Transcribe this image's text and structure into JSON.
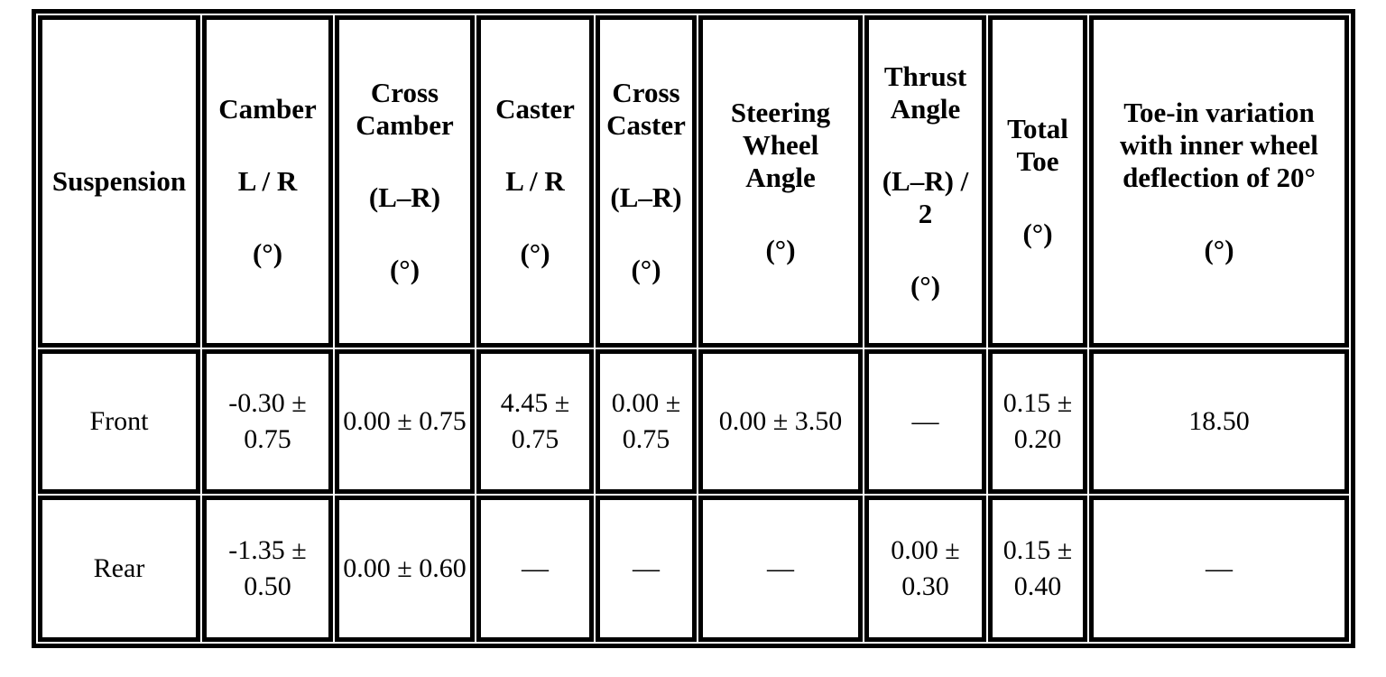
{
  "page": {
    "background": "#ffffff",
    "table_border_color": "#000000",
    "text_color": "#000000"
  },
  "table": {
    "header": {
      "cells": [
        {
          "name": "suspension",
          "groups": [
            "Suspension"
          ]
        },
        {
          "name": "camber",
          "groups": [
            "Camber",
            "L / R",
            "(°)"
          ]
        },
        {
          "name": "cross-camber",
          "groups": [
            "Cross Camber",
            "(L–R)",
            "(°)"
          ]
        },
        {
          "name": "caster",
          "groups": [
            "Caster",
            "L / R",
            "(°)"
          ]
        },
        {
          "name": "cross-caster",
          "groups": [
            "Cross Caster",
            "(L–R)",
            "(°)"
          ]
        },
        {
          "name": "steering-wheel-angle",
          "groups": [
            "Steering Wheel Angle",
            "(°)"
          ]
        },
        {
          "name": "thrust-angle",
          "groups": [
            "Thrust Angle",
            "(L–R) / 2",
            "(°)"
          ]
        },
        {
          "name": "total-toe",
          "groups": [
            "Total Toe",
            "(°)"
          ]
        },
        {
          "name": "toe-in-variation",
          "groups": [
            "Toe-in variation with inner wheel deflection of 20°",
            "(°)"
          ]
        }
      ]
    },
    "rows": [
      {
        "label": "Front",
        "values": [
          "-0.30 ± 0.75",
          "0.00 ± 0.75",
          "4.45 ± 0.75",
          "0.00 ± 0.75",
          "0.00 ± 3.50",
          "—",
          "0.15 ± 0.20",
          "18.50"
        ]
      },
      {
        "label": "Rear",
        "values": [
          "-1.35 ± 0.50",
          "0.00 ± 0.60",
          "—",
          "—",
          "—",
          "0.00 ± 0.30",
          "0.15 ± 0.40",
          "—"
        ]
      }
    ]
  }
}
